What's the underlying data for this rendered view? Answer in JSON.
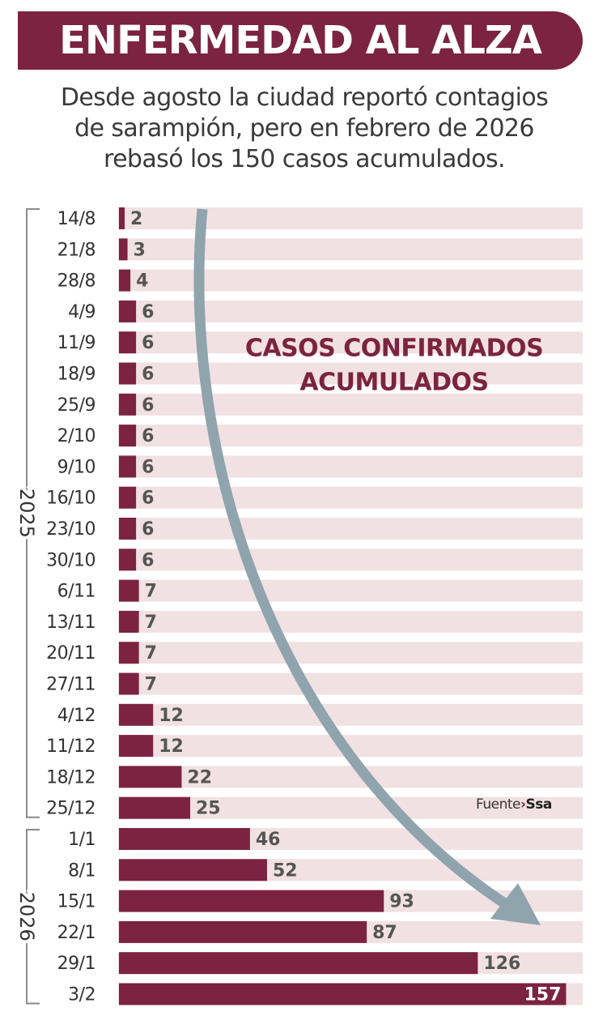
{
  "title": "ENFERMEDAD AL ALZA",
  "subtitle_lines": [
    "Desde agosto la ciudad reportó contagios",
    "de sarampión, pero en febrero de 2026",
    "rebasó los 150 casos acumulados."
  ],
  "source": {
    "prefix": "Fuente",
    "separator": "›",
    "org": "Ssa"
  },
  "colors": {
    "bar": "#7b2340",
    "row_bg": "#f1e1e3",
    "arrow": "#8fa4ad",
    "label_text": "#7b2340"
  },
  "chart_data": {
    "type": "bar",
    "orientation": "horizontal",
    "title": "ENFERMEDAD AL ALZA",
    "annotation": [
      "CASOS CONFIRMADOS",
      "ACUMULADOS"
    ],
    "xlim": [
      0,
      160
    ],
    "groups": [
      {
        "label": "2025",
        "start": 0,
        "end": 19
      },
      {
        "label": "2026",
        "start": 20,
        "end": 25
      }
    ],
    "categories": [
      "14/8",
      "21/8",
      "28/8",
      "4/9",
      "11/9",
      "18/9",
      "25/9",
      "2/10",
      "9/10",
      "16/10",
      "23/10",
      "30/10",
      "6/11",
      "13/11",
      "20/11",
      "27/11",
      "4/12",
      "11/12",
      "18/12",
      "25/12",
      "1/1",
      "8/1",
      "15/1",
      "22/1",
      "29/1",
      "3/2"
    ],
    "values": [
      2,
      3,
      4,
      6,
      6,
      6,
      6,
      6,
      6,
      6,
      6,
      6,
      7,
      7,
      7,
      7,
      12,
      12,
      22,
      25,
      46,
      52,
      93,
      87,
      126,
      157
    ]
  }
}
